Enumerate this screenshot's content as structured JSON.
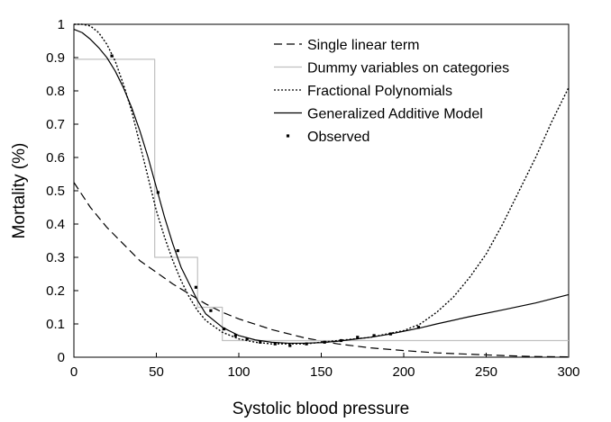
{
  "chart_data": {
    "type": "line",
    "title": "",
    "xlabel": "Systolic blood pressure",
    "ylabel": "Mortality (%)",
    "xlim": [
      0,
      300
    ],
    "ylim": [
      0,
      1
    ],
    "x_ticks": [
      0,
      50,
      100,
      150,
      200,
      250,
      300
    ],
    "y_ticks": [
      0,
      0.1,
      0.2,
      0.3,
      0.4,
      0.5,
      0.6,
      0.7,
      0.8,
      0.9,
      1
    ],
    "x_tick_labels": [
      "0",
      "50",
      "100",
      "150",
      "200",
      "250",
      "300"
    ],
    "y_tick_labels": [
      "0",
      "0.1",
      "0.2",
      "0.3",
      "0.4",
      "0.5",
      "0.6",
      "0.7",
      "0.8",
      "0.9",
      "1"
    ],
    "grid": false,
    "legend_position": "top-right",
    "series": [
      {
        "name": "Single linear term",
        "style": "dashed",
        "color": "#000000",
        "x": [
          0,
          10,
          20,
          30,
          40,
          50,
          60,
          70,
          80,
          90,
          100,
          120,
          140,
          160,
          180,
          200,
          220,
          240,
          260,
          280,
          300
        ],
        "y": [
          0.525,
          0.45,
          0.39,
          0.34,
          0.29,
          0.255,
          0.22,
          0.19,
          0.16,
          0.135,
          0.115,
          0.083,
          0.058,
          0.04,
          0.028,
          0.02,
          0.013,
          0.009,
          0.005,
          0.002,
          0.001
        ]
      },
      {
        "name": "Dummy variables on categories",
        "style": "solid",
        "color": "#c0c0c0",
        "step": true,
        "x": [
          0,
          49,
          49,
          75,
          75,
          90,
          90,
          300
        ],
        "y": [
          0.895,
          0.895,
          0.3,
          0.3,
          0.15,
          0.15,
          0.05,
          0.05
        ]
      },
      {
        "name": "Fractional Polynomials",
        "style": "dotted",
        "color": "#000000",
        "x": [
          0,
          5,
          10,
          15,
          20,
          25,
          30,
          35,
          40,
          45,
          50,
          55,
          60,
          65,
          70,
          75,
          80,
          90,
          100,
          110,
          120,
          130,
          140,
          150,
          160,
          170,
          180,
          190,
          200,
          210,
          220,
          230,
          240,
          250,
          260,
          270,
          280,
          290,
          300
        ],
        "y": [
          1.0,
          1.0,
          0.995,
          0.975,
          0.94,
          0.89,
          0.82,
          0.74,
          0.64,
          0.54,
          0.44,
          0.36,
          0.29,
          0.23,
          0.18,
          0.14,
          0.11,
          0.075,
          0.055,
          0.045,
          0.04,
          0.04,
          0.04,
          0.045,
          0.05,
          0.055,
          0.06,
          0.07,
          0.08,
          0.1,
          0.135,
          0.18,
          0.24,
          0.31,
          0.4,
          0.5,
          0.6,
          0.71,
          0.81
        ]
      },
      {
        "name": "Generalized Additive Model",
        "style": "solid",
        "color": "#000000",
        "x": [
          0,
          5,
          10,
          15,
          20,
          25,
          30,
          35,
          40,
          45,
          50,
          55,
          60,
          65,
          70,
          75,
          80,
          90,
          100,
          110,
          120,
          130,
          140,
          150,
          160,
          170,
          180,
          190,
          200,
          210,
          220,
          240,
          260,
          280,
          300
        ],
        "y": [
          0.985,
          0.975,
          0.955,
          0.93,
          0.9,
          0.86,
          0.81,
          0.75,
          0.68,
          0.6,
          0.51,
          0.42,
          0.34,
          0.27,
          0.22,
          0.17,
          0.13,
          0.09,
          0.065,
          0.052,
          0.045,
          0.042,
          0.042,
          0.044,
          0.048,
          0.054,
          0.06,
          0.068,
          0.078,
          0.088,
          0.1,
          0.122,
          0.142,
          0.163,
          0.188
        ]
      },
      {
        "name": "Observed",
        "style": "points",
        "color": "#000000",
        "x": [
          23,
          51,
          63,
          74,
          83,
          91,
          98,
          105,
          113,
          122,
          131,
          141,
          152,
          162,
          172,
          182,
          192,
          209
        ],
        "y": [
          0.905,
          0.495,
          0.32,
          0.21,
          0.14,
          0.085,
          0.065,
          0.055,
          0.045,
          0.04,
          0.035,
          0.04,
          0.045,
          0.05,
          0.06,
          0.065,
          0.07,
          0.09
        ]
      }
    ]
  }
}
